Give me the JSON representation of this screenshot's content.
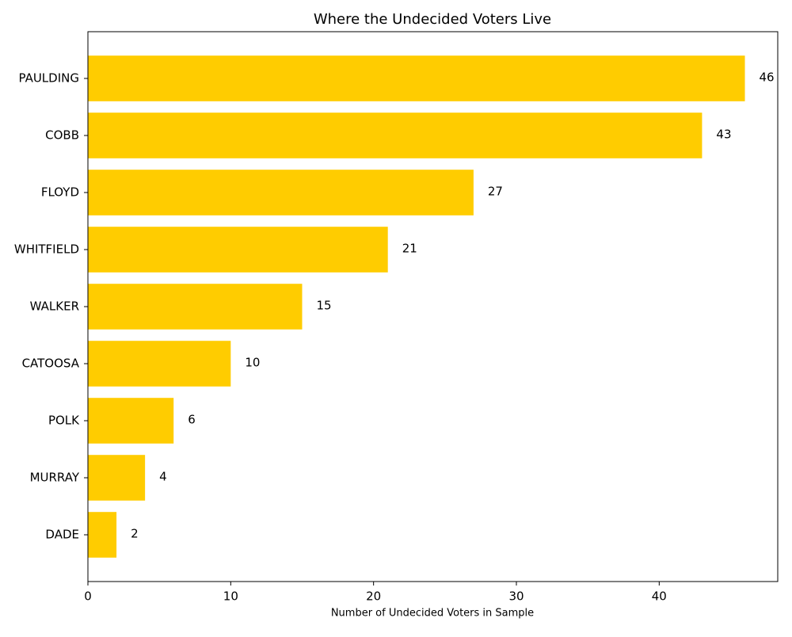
{
  "chart_data": {
    "type": "bar",
    "orientation": "horizontal",
    "title": "Where the Undecided Voters Live",
    "x_label": "Number of Undecided Voters in Sample",
    "categories": [
      "PAULDING",
      "COBB",
      "FLOYD",
      "WHITFIELD",
      "WALKER",
      "CATOOSA",
      "POLK",
      "MURRAY",
      "DADE"
    ],
    "values": [
      46,
      43,
      27,
      21,
      15,
      10,
      6,
      4,
      2
    ],
    "color": "#ffcc00",
    "xlim": [
      0,
      48.3
    ],
    "xticks": [
      0,
      10,
      20,
      30,
      40
    ],
    "grid": false
  }
}
